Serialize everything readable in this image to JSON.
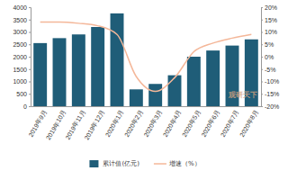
{
  "chart_data": {
    "type": "bar",
    "categories": [
      "2019年9月",
      "2019年10月",
      "2019年11月",
      "2019年12月",
      "2020年1月",
      "2020年2月",
      "2020年3月",
      "2020年4月",
      "2020年5月",
      "2020年6月",
      "2020年7月",
      "2020年8月"
    ],
    "series": [
      {
        "name": "累计值(亿元)",
        "type": "bar",
        "color": "#1f5d78",
        "values": [
          2550,
          2750,
          2900,
          3200,
          3750,
          680,
          900,
          1250,
          2000,
          2250,
          2450,
          2700
        ]
      },
      {
        "name": "增速（%）",
        "type": "line",
        "axis": "y2",
        "color": "#f4b799",
        "marker": "none",
        "values": [
          14,
          14,
          13.5,
          12.5,
          9,
          -8,
          -14,
          -8.5,
          2,
          5.5,
          7.5,
          9
        ]
      }
    ],
    "ylim": [
      0,
      4000
    ],
    "yticks": [
      0,
      500,
      1000,
      1500,
      2000,
      2500,
      3000,
      3500,
      4000
    ],
    "y2lim": [
      -20,
      20
    ],
    "y2ticks": [
      {
        "value": -20,
        "label": "-20%"
      },
      {
        "value": -15,
        "label": "-15%"
      },
      {
        "value": -10,
        "label": "-10%"
      },
      {
        "value": -5,
        "label": "-5%"
      },
      {
        "value": 0,
        "label": "0%"
      },
      {
        "value": 5,
        "label": "5%"
      },
      {
        "value": 10,
        "label": "10%"
      },
      {
        "value": 15,
        "label": "15%"
      },
      {
        "value": 20,
        "label": "20%"
      }
    ],
    "grid": false,
    "legend": "bottom",
    "annotations": [
      "观研天下"
    ]
  }
}
